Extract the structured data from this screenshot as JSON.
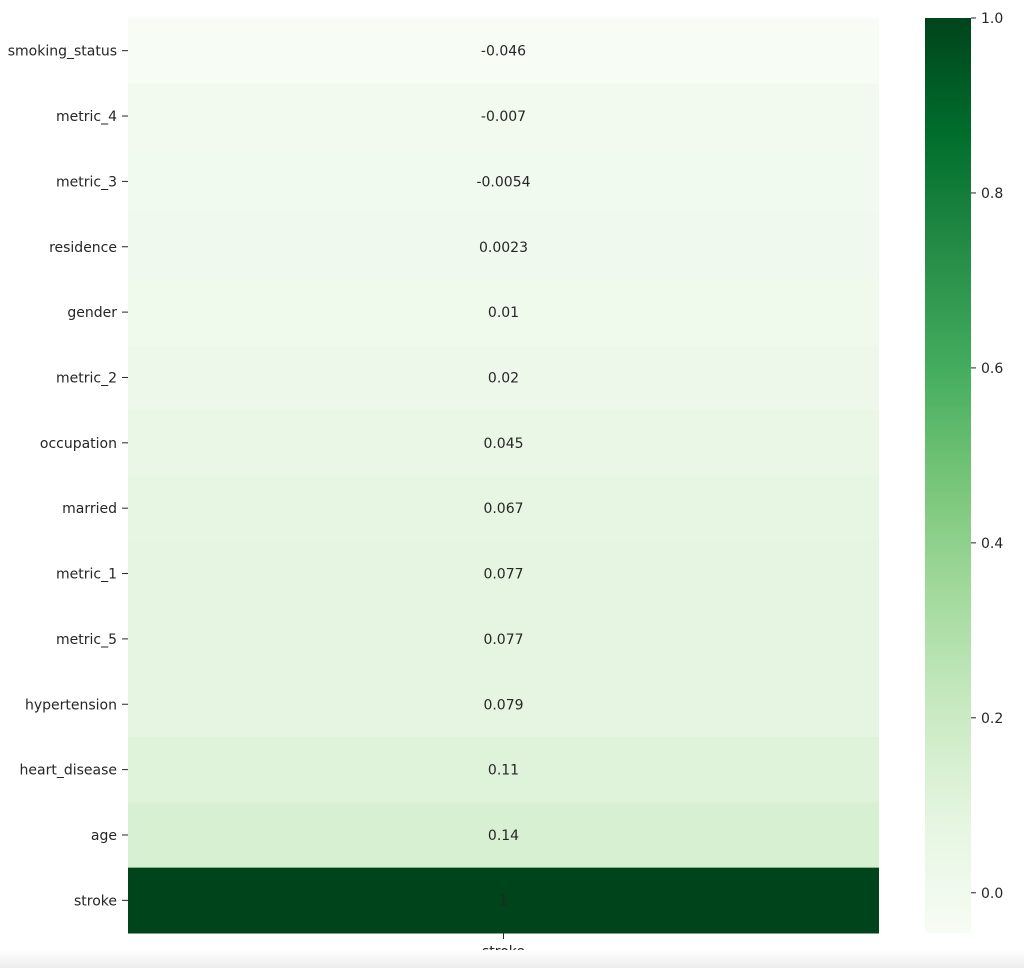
{
  "chart_data": {
    "type": "heatmap",
    "title": "",
    "columns": [
      "stroke"
    ],
    "rows": [
      "smoking_status",
      "metric_4",
      "metric_3",
      "residence",
      "gender",
      "metric_2",
      "occupation",
      "married",
      "metric_1",
      "metric_5",
      "hypertension",
      "heart_disease",
      "age",
      "stroke"
    ],
    "values": [
      -0.046,
      -0.007,
      -0.0054,
      0.0023,
      0.01,
      0.02,
      0.045,
      0.067,
      0.077,
      0.077,
      0.079,
      0.11,
      0.14,
      1
    ],
    "annotations": [
      "-0.046",
      "-0.007",
      "-0.0054",
      "0.0023",
      "0.01",
      "0.02",
      "0.045",
      "0.067",
      "0.077",
      "0.077",
      "0.079",
      "0.11",
      "0.14",
      "1"
    ],
    "colormap": "Greens",
    "colorbar": {
      "min": -0.046,
      "max": 1.0,
      "ticks": [
        0.0,
        0.2,
        0.4,
        0.6,
        0.8,
        1.0
      ],
      "tick_labels": [
        "0.0",
        "0.2",
        "0.4",
        "0.6",
        "0.8",
        "1.0"
      ]
    }
  }
}
